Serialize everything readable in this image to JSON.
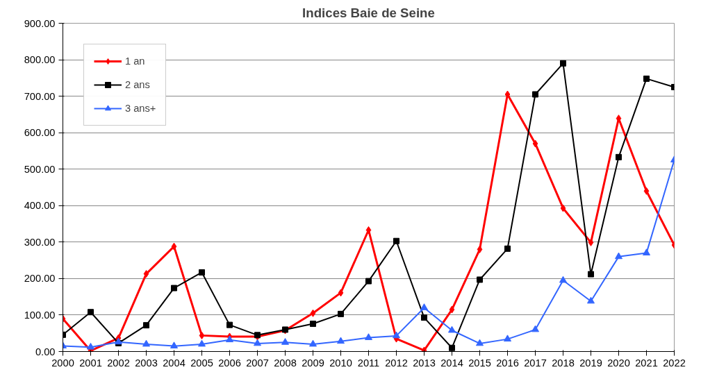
{
  "chart_data": {
    "type": "line",
    "title": "Indices Baie de Seine",
    "categories": [
      "2000",
      "2001",
      "2002",
      "2003",
      "2004",
      "2005",
      "2006",
      "2007",
      "2008",
      "2009",
      "2010",
      "2011",
      "2012",
      "2013",
      "2014",
      "2015",
      "2016",
      "2017",
      "2018",
      "2019",
      "2020",
      "2021",
      "2022"
    ],
    "series": [
      {
        "name": "1 an",
        "color": "#ff0000",
        "marker": "diamond",
        "values": [
          90,
          2,
          37,
          213,
          288,
          44,
          41,
          41,
          58,
          105,
          161,
          333,
          35,
          3,
          115,
          280,
          705,
          570,
          393,
          299,
          639,
          440,
          292
        ]
      },
      {
        "name": "2 ans",
        "color": "#000000",
        "marker": "square",
        "values": [
          46,
          108,
          23,
          72,
          174,
          217,
          73,
          45,
          60,
          76,
          103,
          193,
          303,
          93,
          10,
          197,
          282,
          705,
          790,
          212,
          533,
          748,
          725
        ]
      },
      {
        "name": "3 ans+",
        "color": "#3366ff",
        "marker": "triangle",
        "values": [
          15,
          12,
          26,
          20,
          15,
          20,
          32,
          22,
          25,
          20,
          28,
          38,
          43,
          120,
          58,
          22,
          34,
          60,
          195,
          138,
          260,
          270,
          525
        ]
      }
    ],
    "ylim": [
      0,
      900
    ],
    "yticks": [
      {
        "value": 0,
        "label": "0.00"
      },
      {
        "value": 100,
        "label": "100.00"
      },
      {
        "value": 200,
        "label": "200.00"
      },
      {
        "value": 300,
        "label": "300.00"
      },
      {
        "value": 400,
        "label": "400.00"
      },
      {
        "value": 500,
        "label": "500.00"
      },
      {
        "value": 600,
        "label": "600.00"
      },
      {
        "value": 700,
        "label": "700.00"
      },
      {
        "value": 800,
        "label": "800.00"
      },
      {
        "value": 900,
        "label": "900.00"
      }
    ],
    "grid": "y",
    "legend": "top left",
    "line_style": "solid"
  }
}
